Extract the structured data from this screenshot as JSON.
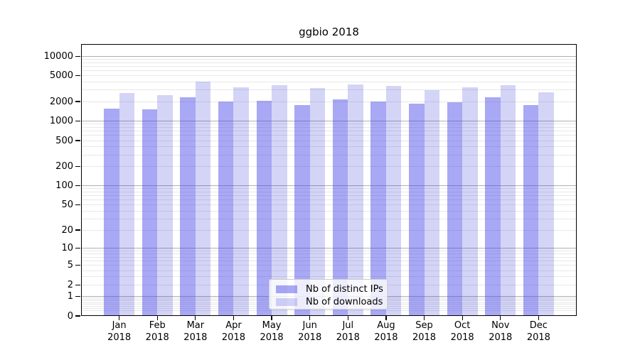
{
  "title": "ggbio 2018",
  "colors": {
    "bar_distinct_ips": "rgba(62,62,230,0.45)",
    "bar_downloads": "rgba(40,40,215,0.20)",
    "grid_major": "#b0b0b0",
    "grid_minor": "#e8e8e8",
    "axis_line": "#000000",
    "legend_border": "#cccccc",
    "legend_background": "rgba(255,255,255,0.8)"
  },
  "legend": {
    "items": [
      {
        "label": "Nb of distinct IPs",
        "color_key": "bar_distinct_ips"
      },
      {
        "label": "Nb of downloads",
        "color_key": "bar_downloads"
      }
    ]
  },
  "chart_data": {
    "type": "bar",
    "title": "ggbio 2018",
    "categories": [
      "Jan",
      "Feb",
      "Mar",
      "Apr",
      "May",
      "Jun",
      "Jul",
      "Aug",
      "Sep",
      "Oct",
      "Nov",
      "Dec"
    ],
    "year_label": "2018",
    "series": [
      {
        "name": "Nb of distinct IPs",
        "color_key": "bar_distinct_ips",
        "values": [
          1560,
          1530,
          2330,
          2000,
          2050,
          1750,
          2150,
          2020,
          1850,
          1930,
          2330,
          1760
        ]
      },
      {
        "name": "Nb of downloads",
        "color_key": "bar_downloads",
        "values": [
          2690,
          2540,
          4030,
          3320,
          3620,
          3230,
          3680,
          3490,
          3020,
          3350,
          3620,
          2810
        ]
      }
    ],
    "xlabel": "",
    "ylabel": "",
    "y_scale": "log10(value+1)",
    "y_axis_max": 15400,
    "y_ticks": [
      10000,
      5000,
      2000,
      1000,
      500,
      200,
      100,
      50,
      20,
      10,
      5,
      2,
      1,
      0
    ],
    "grid": {
      "orientation": "horizontal",
      "major_values": [
        1,
        10,
        100,
        1000,
        10000
      ],
      "minor_decades": [
        0.1,
        1,
        10,
        100,
        1000
      ],
      "minor_multiples": [
        2,
        3,
        4,
        5,
        6,
        7,
        8,
        9
      ]
    },
    "legend_position": "lower center",
    "bar_width_units": 0.4,
    "x_units_span": 13
  }
}
